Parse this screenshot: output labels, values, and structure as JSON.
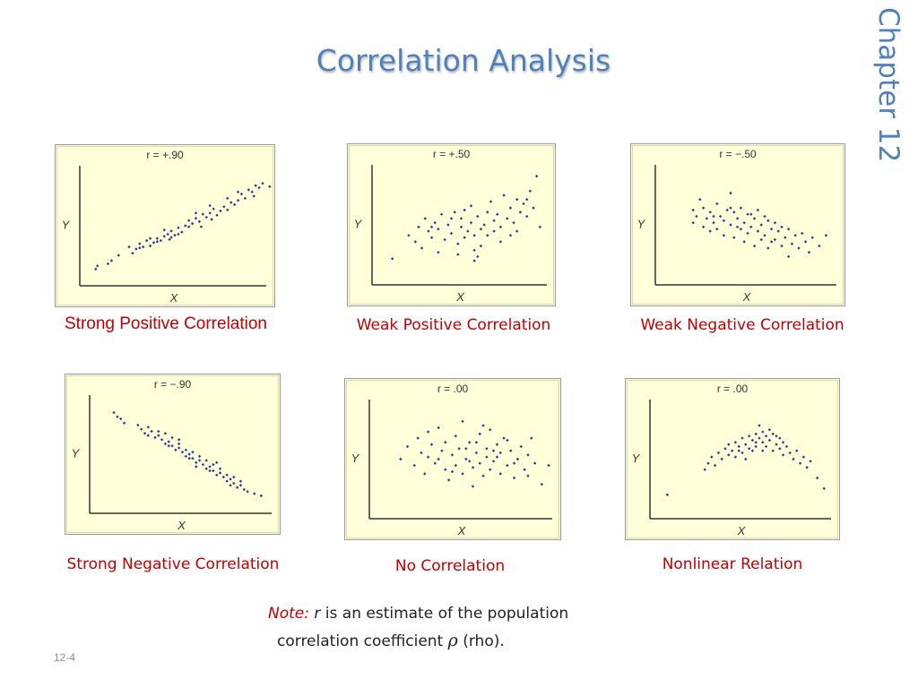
{
  "slide": {
    "title": "Correlation Analysis",
    "chapter": "Chapter 12",
    "slide_number": "12-4",
    "note": {
      "label": "Note:",
      "symbol": "r",
      "line1_rest": " is an estimate of the population",
      "line2_pre": "correlation coefficient ",
      "rho": "ρ",
      "line2_post": " (rho)."
    },
    "colors": {
      "title": "#4f81bd",
      "caption": "#c00000",
      "plot_bg": "#ffffd9",
      "point": "#2b3990"
    }
  },
  "chart_data": [
    {
      "type": "scatter",
      "title": "r = +.90",
      "caption": "Strong Positive Correlation",
      "xlabel": "X",
      "ylabel": "Y",
      "xlim": [
        0,
        100
      ],
      "ylim": [
        0,
        100
      ],
      "points": [
        [
          5,
          9
        ],
        [
          6,
          12
        ],
        [
          12,
          14
        ],
        [
          14,
          17
        ],
        [
          18,
          22
        ],
        [
          24,
          30
        ],
        [
          26,
          24
        ],
        [
          28,
          28
        ],
        [
          30,
          33
        ],
        [
          32,
          30
        ],
        [
          34,
          36
        ],
        [
          36,
          31
        ],
        [
          38,
          34
        ],
        [
          40,
          38
        ],
        [
          42,
          36
        ],
        [
          44,
          40
        ],
        [
          46,
          42
        ],
        [
          47,
          37
        ],
        [
          48,
          45
        ],
        [
          50,
          41
        ],
        [
          52,
          48
        ],
        [
          54,
          44
        ],
        [
          56,
          50
        ],
        [
          58,
          55
        ],
        [
          60,
          52
        ],
        [
          62,
          57
        ],
        [
          64,
          54
        ],
        [
          65,
          49
        ],
        [
          66,
          61
        ],
        [
          68,
          58
        ],
        [
          70,
          62
        ],
        [
          71,
          56
        ],
        [
          72,
          66
        ],
        [
          74,
          60
        ],
        [
          76,
          64
        ],
        [
          78,
          68
        ],
        [
          80,
          65
        ],
        [
          82,
          72
        ],
        [
          84,
          70
        ],
        [
          86,
          74
        ],
        [
          88,
          80
        ],
        [
          90,
          76
        ],
        [
          92,
          84
        ],
        [
          94,
          82
        ],
        [
          95,
          78
        ],
        [
          96,
          88
        ],
        [
          98,
          86
        ],
        [
          100,
          90
        ],
        [
          104,
          87
        ],
        [
          44,
          46
        ],
        [
          52,
          42
        ],
        [
          58,
          49
        ],
        [
          62,
          62
        ],
        [
          70,
          69
        ],
        [
          80,
          76
        ],
        [
          86,
          82
        ],
        [
          30,
          29
        ],
        [
          36,
          38
        ],
        [
          40,
          35
        ],
        [
          48,
          39
        ]
      ]
    },
    {
      "type": "scatter",
      "title": "r = +.50",
      "caption": "Weak Positive Correlation",
      "xlabel": "X",
      "ylabel": "Y",
      "xlim": [
        0,
        100
      ],
      "ylim": [
        0,
        100
      ],
      "points": [
        [
          8,
          18
        ],
        [
          18,
          40
        ],
        [
          22,
          34
        ],
        [
          24,
          48
        ],
        [
          26,
          28
        ],
        [
          28,
          56
        ],
        [
          30,
          44
        ],
        [
          32,
          38
        ],
        [
          34,
          52
        ],
        [
          36,
          46
        ],
        [
          36,
          24
        ],
        [
          38,
          60
        ],
        [
          40,
          36
        ],
        [
          42,
          50
        ],
        [
          44,
          42
        ],
        [
          46,
          62
        ],
        [
          48,
          32
        ],
        [
          50,
          48
        ],
        [
          50,
          56
        ],
        [
          52,
          38
        ],
        [
          54,
          44
        ],
        [
          56,
          68
        ],
        [
          56,
          52
        ],
        [
          58,
          26
        ],
        [
          58,
          40
        ],
        [
          60,
          58
        ],
        [
          62,
          46
        ],
        [
          62,
          30
        ],
        [
          64,
          50
        ],
        [
          66,
          62
        ],
        [
          66,
          40
        ],
        [
          68,
          72
        ],
        [
          70,
          54
        ],
        [
          70,
          44
        ],
        [
          72,
          60
        ],
        [
          74,
          48
        ],
        [
          74,
          34
        ],
        [
          76,
          78
        ],
        [
          78,
          56
        ],
        [
          80,
          66
        ],
        [
          82,
          52
        ],
        [
          84,
          74
        ],
        [
          84,
          44
        ],
        [
          86,
          62
        ],
        [
          88,
          70
        ],
        [
          90,
          58
        ],
        [
          92,
          82
        ],
        [
          94,
          66
        ],
        [
          96,
          96
        ],
        [
          98,
          48
        ],
        [
          58,
          16
        ],
        [
          60,
          20
        ],
        [
          48,
          22
        ],
        [
          52,
          64
        ],
        [
          80,
          40
        ],
        [
          32,
          48
        ],
        [
          44,
          56
        ],
        [
          90,
          74
        ]
      ]
    },
    {
      "type": "scatter",
      "title": "r = −.50",
      "caption": "Weak Negative Correlation",
      "xlabel": "X",
      "ylabel": "Y",
      "xlim": [
        0,
        100
      ],
      "ylim": [
        0,
        100
      ],
      "points": [
        [
          18,
          64
        ],
        [
          18,
          52
        ],
        [
          20,
          58
        ],
        [
          22,
          74
        ],
        [
          24,
          66
        ],
        [
          24,
          48
        ],
        [
          26,
          56
        ],
        [
          28,
          62
        ],
        [
          28,
          44
        ],
        [
          30,
          52
        ],
        [
          32,
          70
        ],
        [
          32,
          46
        ],
        [
          34,
          58
        ],
        [
          36,
          54
        ],
        [
          36,
          40
        ],
        [
          38,
          64
        ],
        [
          40,
          50
        ],
        [
          40,
          80
        ],
        [
          42,
          62
        ],
        [
          42,
          38
        ],
        [
          44,
          56
        ],
        [
          46,
          46
        ],
        [
          46,
          66
        ],
        [
          48,
          52
        ],
        [
          48,
          34
        ],
        [
          50,
          60
        ],
        [
          50,
          42
        ],
        [
          52,
          48
        ],
        [
          54,
          56
        ],
        [
          54,
          30
        ],
        [
          56,
          44
        ],
        [
          56,
          64
        ],
        [
          58,
          50
        ],
        [
          58,
          36
        ],
        [
          60,
          40
        ],
        [
          62,
          54
        ],
        [
          62,
          28
        ],
        [
          64,
          46
        ],
        [
          66,
          52
        ],
        [
          66,
          36
        ],
        [
          68,
          44
        ],
        [
          70,
          30
        ],
        [
          70,
          48
        ],
        [
          72,
          38
        ],
        [
          74,
          46
        ],
        [
          74,
          20
        ],
        [
          76,
          32
        ],
        [
          78,
          40
        ],
        [
          80,
          28
        ],
        [
          82,
          42
        ],
        [
          84,
          34
        ],
        [
          86,
          24
        ],
        [
          88,
          38
        ],
        [
          92,
          30
        ],
        [
          96,
          40
        ],
        [
          30,
          58
        ],
        [
          40,
          66
        ],
        [
          52,
          60
        ],
        [
          64,
          34
        ],
        [
          44,
          48
        ],
        [
          60,
          58
        ]
      ]
    },
    {
      "type": "scatter",
      "title": "r = −.90",
      "caption": "Strong Negative Correlation",
      "xlabel": "X",
      "ylabel": "Y",
      "xlim": [
        0,
        100
      ],
      "ylim": [
        0,
        100
      ],
      "points": [
        [
          10,
          90
        ],
        [
          12,
          86
        ],
        [
          14,
          84
        ],
        [
          16,
          80
        ],
        [
          24,
          78
        ],
        [
          26,
          74
        ],
        [
          28,
          70
        ],
        [
          30,
          76
        ],
        [
          32,
          72
        ],
        [
          34,
          66
        ],
        [
          36,
          68
        ],
        [
          38,
          64
        ],
        [
          40,
          60
        ],
        [
          42,
          62
        ],
        [
          44,
          58
        ],
        [
          46,
          54
        ],
        [
          48,
          56
        ],
        [
          50,
          52
        ],
        [
          52,
          48
        ],
        [
          54,
          50
        ],
        [
          56,
          46
        ],
        [
          58,
          42
        ],
        [
          60,
          44
        ],
        [
          62,
          40
        ],
        [
          64,
          36
        ],
        [
          66,
          38
        ],
        [
          68,
          34
        ],
        [
          70,
          30
        ],
        [
          72,
          32
        ],
        [
          74,
          28
        ],
        [
          76,
          24
        ],
        [
          78,
          26
        ],
        [
          80,
          22
        ],
        [
          82,
          18
        ],
        [
          84,
          20
        ],
        [
          88,
          14
        ],
        [
          92,
          12
        ],
        [
          96,
          10
        ],
        [
          36,
          72
        ],
        [
          40,
          70
        ],
        [
          44,
          66
        ],
        [
          48,
          60
        ],
        [
          52,
          54
        ],
        [
          56,
          52
        ],
        [
          60,
          48
        ],
        [
          64,
          44
        ],
        [
          68,
          40
        ],
        [
          72,
          36
        ],
        [
          76,
          30
        ],
        [
          80,
          28
        ],
        [
          84,
          24
        ],
        [
          30,
          68
        ],
        [
          42,
          58
        ],
        [
          54,
          46
        ],
        [
          66,
          34
        ],
        [
          78,
          20
        ],
        [
          58,
          38
        ],
        [
          48,
          64
        ],
        [
          70,
          42
        ],
        [
          86,
          16
        ]
      ]
    },
    {
      "type": "scatter",
      "title": "r = .00",
      "caption": "No Correlation",
      "xlabel": "X",
      "ylabel": "Y",
      "xlim": [
        0,
        100
      ],
      "ylim": [
        0,
        100
      ],
      "points": [
        [
          14,
          50
        ],
        [
          18,
          62
        ],
        [
          22,
          44
        ],
        [
          24,
          70
        ],
        [
          26,
          56
        ],
        [
          28,
          36
        ],
        [
          30,
          52
        ],
        [
          32,
          64
        ],
        [
          34,
          46
        ],
        [
          36,
          80
        ],
        [
          38,
          58
        ],
        [
          40,
          40
        ],
        [
          40,
          66
        ],
        [
          42,
          30
        ],
        [
          44,
          54
        ],
        [
          46,
          72
        ],
        [
          46,
          44
        ],
        [
          48,
          60
        ],
        [
          50,
          36
        ],
        [
          50,
          86
        ],
        [
          52,
          50
        ],
        [
          54,
          66
        ],
        [
          56,
          42
        ],
        [
          56,
          24
        ],
        [
          58,
          56
        ],
        [
          60,
          74
        ],
        [
          60,
          46
        ],
        [
          62,
          34
        ],
        [
          64,
          60
        ],
        [
          64,
          52
        ],
        [
          66,
          78
        ],
        [
          66,
          40
        ],
        [
          68,
          48
        ],
        [
          70,
          64
        ],
        [
          72,
          36
        ],
        [
          72,
          56
        ],
        [
          74,
          70
        ],
        [
          76,
          44
        ],
        [
          78,
          58
        ],
        [
          80,
          32
        ],
        [
          82,
          50
        ],
        [
          84,
          62
        ],
        [
          86,
          40
        ],
        [
          88,
          54
        ],
        [
          90,
          70
        ],
        [
          92,
          46
        ],
        [
          96,
          26
        ],
        [
          100,
          44
        ],
        [
          30,
          76
        ],
        [
          52,
          60
        ],
        [
          70,
          52
        ],
        [
          58,
          66
        ],
        [
          44,
          38
        ],
        [
          80,
          46
        ],
        [
          62,
          82
        ],
        [
          36,
          50
        ],
        [
          76,
          68
        ],
        [
          88,
          34
        ],
        [
          54,
          48
        ],
        [
          68,
          58
        ]
      ]
    },
    {
      "type": "scatter",
      "title": "r = .00",
      "caption": "Nonlinear Relation",
      "xlabel": "X",
      "ylabel": "Y",
      "xlim": [
        0,
        100
      ],
      "ylim": [
        0,
        100
      ],
      "points": [
        [
          6,
          16
        ],
        [
          28,
          40
        ],
        [
          30,
          46
        ],
        [
          32,
          52
        ],
        [
          34,
          44
        ],
        [
          36,
          56
        ],
        [
          38,
          50
        ],
        [
          40,
          60
        ],
        [
          42,
          54
        ],
        [
          42,
          64
        ],
        [
          44,
          58
        ],
        [
          46,
          66
        ],
        [
          46,
          52
        ],
        [
          48,
          62
        ],
        [
          50,
          70
        ],
        [
          50,
          56
        ],
        [
          52,
          64
        ],
        [
          54,
          72
        ],
        [
          54,
          60
        ],
        [
          56,
          68
        ],
        [
          58,
          74
        ],
        [
          58,
          62
        ],
        [
          60,
          70
        ],
        [
          60,
          82
        ],
        [
          62,
          66
        ],
        [
          62,
          76
        ],
        [
          64,
          72
        ],
        [
          66,
          68
        ],
        [
          66,
          78
        ],
        [
          68,
          74
        ],
        [
          70,
          64
        ],
        [
          70,
          72
        ],
        [
          72,
          70
        ],
        [
          72,
          60
        ],
        [
          74,
          66
        ],
        [
          74,
          54
        ],
        [
          76,
          62
        ],
        [
          78,
          56
        ],
        [
          80,
          50
        ],
        [
          82,
          58
        ],
        [
          84,
          46
        ],
        [
          86,
          52
        ],
        [
          88,
          42
        ],
        [
          90,
          48
        ],
        [
          94,
          32
        ],
        [
          98,
          22
        ],
        [
          52,
          50
        ],
        [
          56,
          58
        ],
        [
          64,
          62
        ],
        [
          68,
          58
        ],
        [
          48,
          58
        ],
        [
          58,
          66
        ],
        [
          62,
          58
        ]
      ]
    }
  ]
}
